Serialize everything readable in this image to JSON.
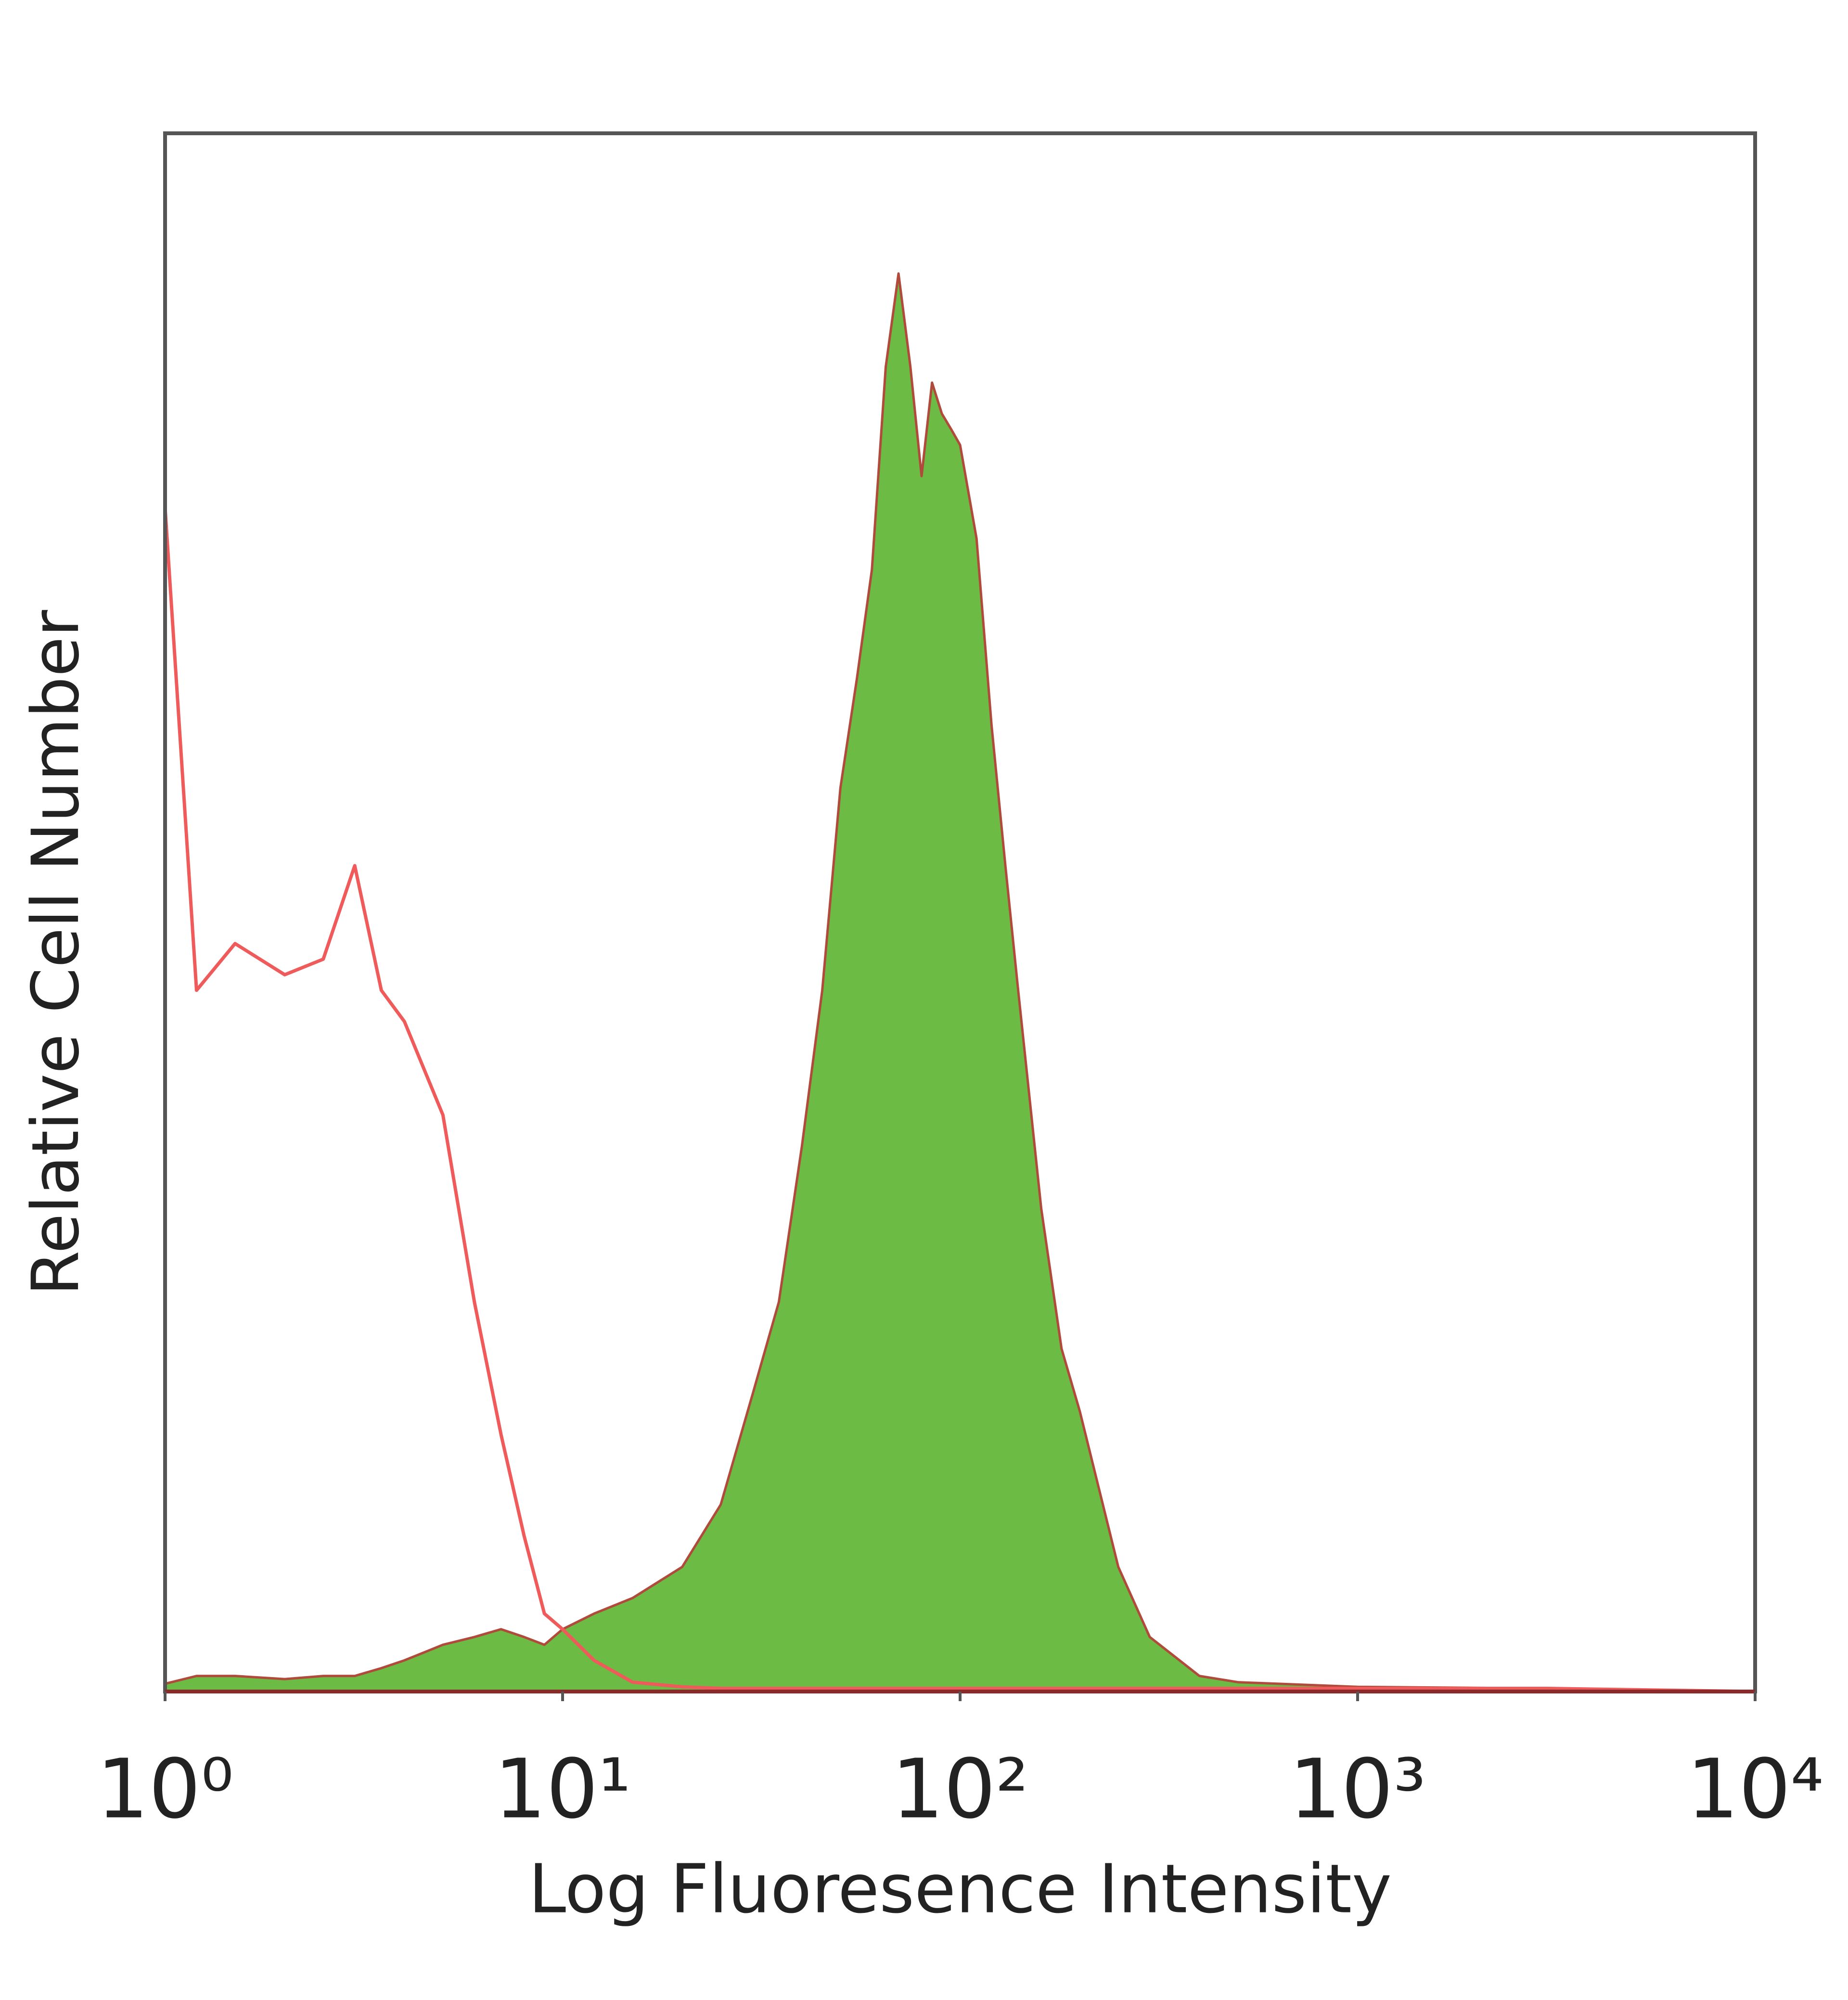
{
  "chart_data": {
    "type": "histogram-overlay",
    "x_label": "Log Fluoresence Intensity",
    "y_label": "Relative Cell Number",
    "log_x": true,
    "xlim": [
      1,
      10000
    ],
    "xticks": [
      {
        "value": 1,
        "label": "10⁰"
      },
      {
        "value": 10,
        "label": "10¹"
      },
      {
        "value": 100,
        "label": "10²"
      },
      {
        "value": 1000,
        "label": "10³"
      },
      {
        "value": 10000,
        "label": "10⁴"
      }
    ],
    "ylim": [
      0,
      100
    ],
    "x": [
      1,
      1.2,
      1.5,
      2,
      2.5,
      3,
      3.5,
      4,
      5,
      6,
      7,
      8,
      9,
      10,
      12,
      15,
      20,
      25,
      30,
      35,
      40,
      45,
      50,
      55,
      60,
      65,
      70,
      75,
      80,
      85,
      90,
      95,
      100,
      110,
      120,
      130,
      140,
      160,
      180,
      200,
      250,
      300,
      400,
      500,
      1000,
      3000,
      10000
    ],
    "series": [
      {
        "color": "#6cbb45",
        "filled": true,
        "values": [
          0.5,
          1,
          1,
          0.8,
          1,
          1,
          1.5,
          2,
          3,
          3.5,
          4,
          3.5,
          3,
          4,
          5,
          6,
          8,
          12,
          19,
          25,
          35,
          45,
          58,
          65,
          72,
          85,
          91,
          85,
          78,
          84,
          82,
          81,
          80,
          74,
          62,
          53,
          45,
          31,
          22,
          18,
          8,
          3.5,
          1,
          0.6,
          0.3,
          0.2,
          0
        ]
      },
      {
        "color": "#ef5a5a",
        "filled": false,
        "values": [
          76,
          45,
          48,
          46,
          47,
          53,
          45,
          43,
          37,
          25,
          16.5,
          10,
          5,
          4,
          2,
          0.6,
          0.3,
          0.2,
          0.2,
          0.2,
          0.2,
          0.2,
          0.2,
          0.2,
          0.2,
          0.2,
          0.2,
          0.2,
          0.2,
          0.2,
          0.2,
          0.2,
          0.2,
          0.2,
          0.2,
          0.2,
          0.2,
          0.2,
          0.2,
          0.2,
          0.2,
          0.2,
          0.2,
          0.2,
          0.2,
          0.2,
          0
        ]
      }
    ]
  }
}
